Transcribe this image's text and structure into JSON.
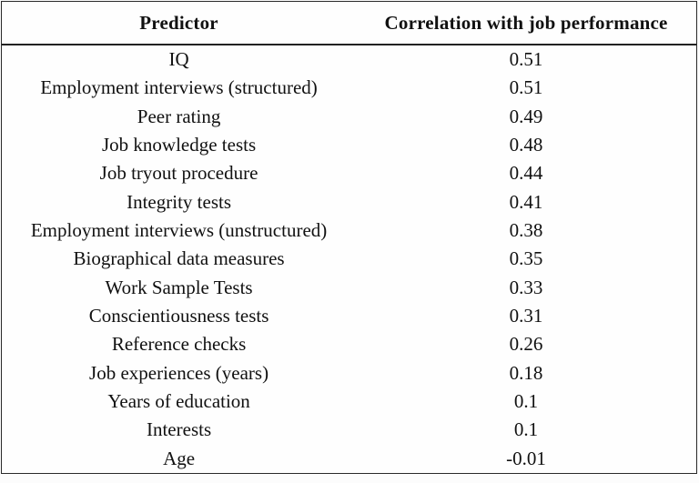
{
  "table": {
    "columns": {
      "predictor": "Predictor",
      "correlation": "Correlation with job performance"
    },
    "rows": [
      {
        "predictor": "IQ",
        "correlation": "0.51"
      },
      {
        "predictor": "Employment interviews (structured)",
        "correlation": "0.51"
      },
      {
        "predictor": "Peer rating",
        "correlation": "0.49"
      },
      {
        "predictor": "Job knowledge tests",
        "correlation": "0.48"
      },
      {
        "predictor": "Job tryout procedure",
        "correlation": "0.44"
      },
      {
        "predictor": "Integrity tests",
        "correlation": "0.41"
      },
      {
        "predictor": "Employment interviews (unstructured)",
        "correlation": "0.38"
      },
      {
        "predictor": "Biographical data measures",
        "correlation": "0.35"
      },
      {
        "predictor": "Work Sample Tests",
        "correlation": "0.33"
      },
      {
        "predictor": "Conscientiousness tests",
        "correlation": "0.31"
      },
      {
        "predictor": "Reference checks",
        "correlation": "0.26"
      },
      {
        "predictor": "Job experiences (years)",
        "correlation": "0.18"
      },
      {
        "predictor": "Years of education",
        "correlation": "0.1"
      },
      {
        "predictor": "Interests",
        "correlation": "0.1"
      },
      {
        "predictor": "Age",
        "correlation": "-0.01"
      }
    ],
    "colors": {
      "text": "#111111",
      "border": "#2a2a2a",
      "background": "#fefefe"
    }
  },
  "chart_data": {
    "type": "table",
    "title": "",
    "categories": [
      "IQ",
      "Employment interviews (structured)",
      "Peer rating",
      "Job knowledge tests",
      "Job tryout procedure",
      "Integrity tests",
      "Employment interviews (unstructured)",
      "Biographical data measures",
      "Work Sample Tests",
      "Conscientiousness tests",
      "Reference checks",
      "Job experiences (years)",
      "Years of education",
      "Interests",
      "Age"
    ],
    "values": [
      0.51,
      0.51,
      0.49,
      0.48,
      0.44,
      0.41,
      0.38,
      0.35,
      0.33,
      0.31,
      0.26,
      0.18,
      0.1,
      0.1,
      -0.01
    ],
    "xlabel": "Predictor",
    "ylabel": "Correlation with job performance"
  }
}
